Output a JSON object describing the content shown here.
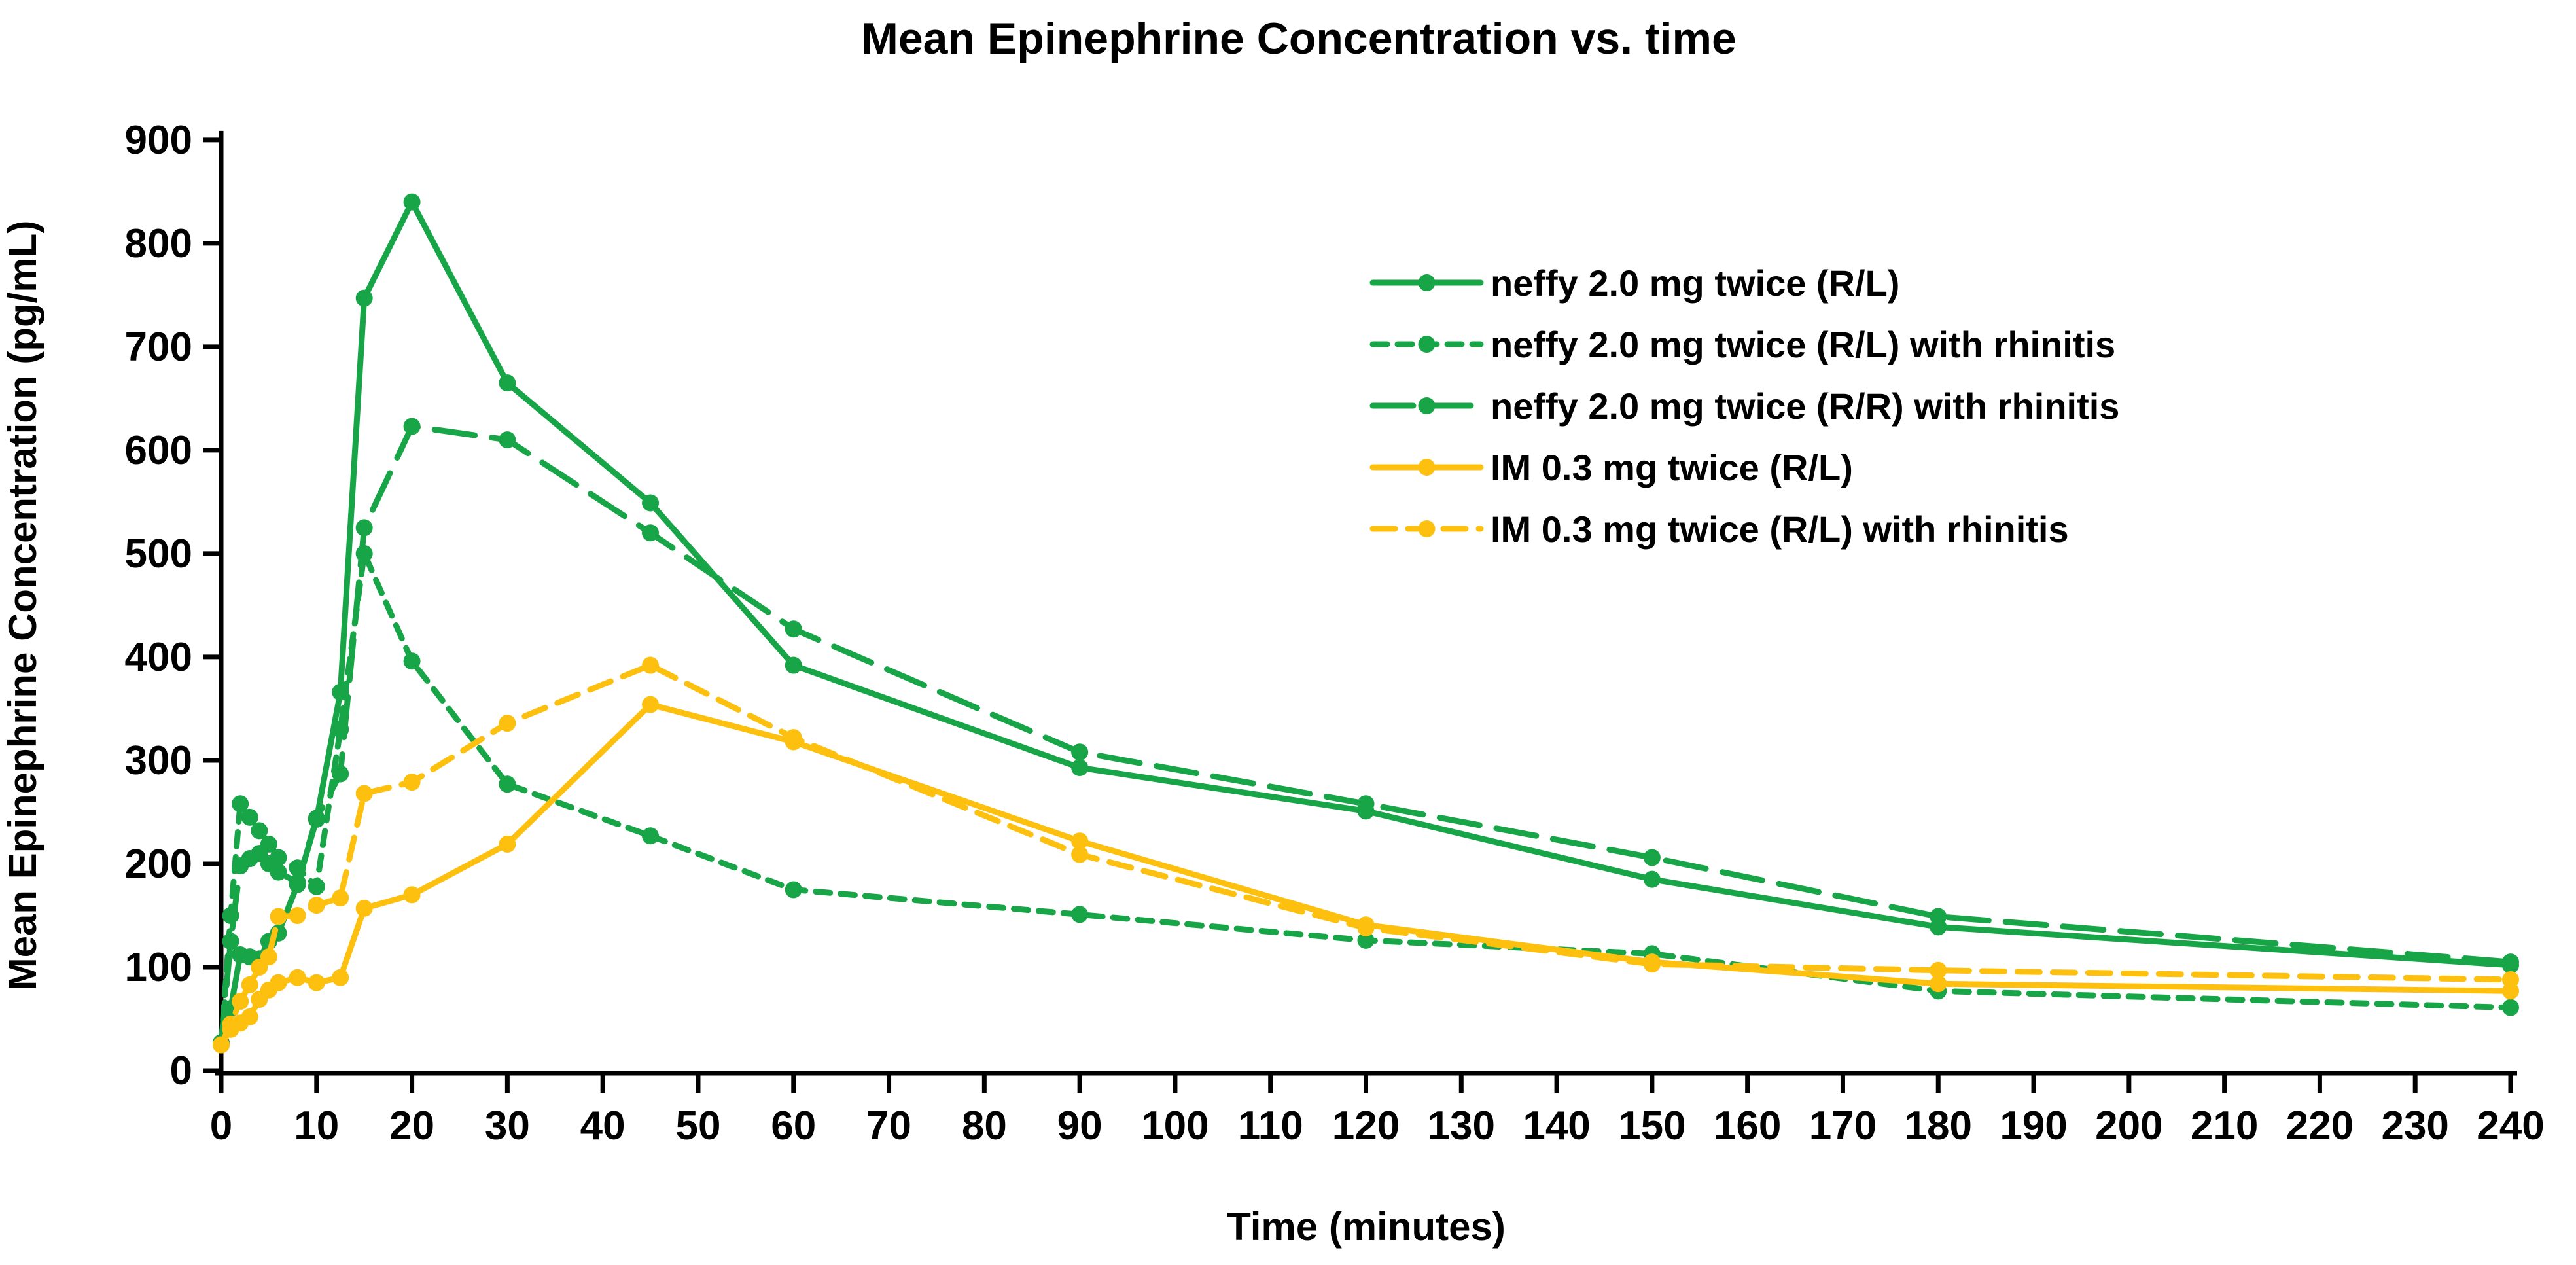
{
  "chart_data": {
    "type": "line",
    "title": "Mean Epinephrine Concentration vs. time",
    "xlabel": "Time (minutes)",
    "ylabel": "Mean Epinephrine Concentration (pg/mL)",
    "xlim": [
      0,
      240
    ],
    "ylim": [
      0,
      900
    ],
    "x_ticks": [
      0,
      10,
      20,
      30,
      40,
      50,
      60,
      70,
      80,
      90,
      100,
      110,
      120,
      130,
      140,
      150,
      160,
      170,
      180,
      190,
      200,
      210,
      220,
      230,
      240
    ],
    "y_ticks": [
      0,
      100,
      200,
      300,
      400,
      500,
      600,
      700,
      800,
      900
    ],
    "grid": false,
    "legend_position": "upper right inside",
    "x": [
      0,
      1,
      2,
      3,
      4,
      5,
      6,
      8,
      10,
      12.5,
      15,
      20,
      30,
      45,
      60,
      90,
      120,
      150,
      180,
      240
    ],
    "series": [
      {
        "name": "neffy 2.0 mg twice (R/L)",
        "color": "#17a548",
        "dash": "solid",
        "values": [
          27,
          60,
          112,
          110,
          108,
          125,
          133,
          180,
          243,
          366,
          747,
          840,
          665,
          549,
          392,
          293,
          251,
          185,
          139,
          102
        ]
      },
      {
        "name": "neffy 2.0 mg twice (R/L) with rhinitis",
        "color": "#17a548",
        "dash": "short",
        "values": [
          25,
          150,
          258,
          245,
          232,
          219,
          206,
          196,
          178,
          330,
          500,
          396,
          277,
          227,
          175,
          151,
          126,
          113,
          77,
          61
        ]
      },
      {
        "name": "neffy 2.0 mg twice (R/R) with rhinitis",
        "color": "#17a548",
        "dash": "long",
        "values": [
          27,
          125,
          198,
          205,
          210,
          200,
          192,
          182,
          244,
          287,
          525,
          623,
          610,
          520,
          427,
          308,
          258,
          206,
          149,
          105
        ]
      },
      {
        "name": "IM 0.3 mg twice (R/L)",
        "color": "#fec00f",
        "dash": "solid",
        "values": [
          25,
          40,
          46,
          52,
          69,
          78,
          85,
          90,
          85,
          90,
          157,
          170,
          219,
          354,
          318,
          222,
          141,
          105,
          84,
          77
        ]
      },
      {
        "name": "IM 0.3 mg twice (R/L) with rhinitis",
        "color": "#fec00f",
        "dash": "medium",
        "values": [
          25,
          45,
          67,
          83,
          100,
          110,
          149,
          150,
          160,
          167,
          268,
          279,
          336,
          392,
          322,
          209,
          138,
          103,
          97,
          88
        ]
      }
    ],
    "colors": {
      "green": "#17a548",
      "yellow": "#fec00f",
      "axis": "#000000"
    }
  },
  "ui": {
    "title": "Mean Epinephrine Concentration vs. time",
    "x_axis_title": "Time (minutes)",
    "y_axis_title": "Mean Epinephrine Concentration (pg/mL)",
    "legend": [
      "neffy 2.0 mg twice (R/L)",
      "neffy 2.0 mg twice (R/L) with rhinitis",
      "neffy 2.0 mg twice (R/R) with rhinitis",
      "IM 0.3 mg twice (R/L)",
      "IM 0.3 mg twice (R/L) with rhinitis"
    ]
  }
}
